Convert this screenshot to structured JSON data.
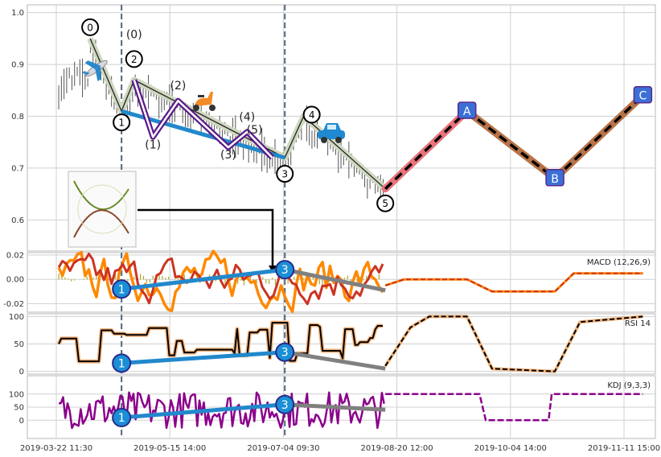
{
  "chart_data": {
    "type": "line",
    "xticks": [
      "2019-03-22 11:30",
      "2019-05-15 14:00",
      "2019-07-04 09:30",
      "2019-08-20 12:00",
      "2019-10-04 14:00",
      "2019-11-11 15:00"
    ],
    "grid": true,
    "colors": {
      "grid": "#d0d0d0",
      "frame": "#b8b8b8",
      "waveFill": "#cfd8c0",
      "purple": "#5a1a8a",
      "blue": "#2288cc",
      "red": "#e8737a",
      "brown": "#b87348",
      "circleBlue": "#1a8fd6",
      "boxBlue": "#3a6fd6",
      "macdDark": "#cc3322",
      "macdLight": "#ff8800",
      "rsiBlack": "#000000",
      "rsiOrange": "#f2b27a",
      "kdj": "#8b008b",
      "gray": "#808080"
    },
    "panels": {
      "price": {
        "yticks": [
          "1.0",
          "0.9",
          "0.8",
          "0.7",
          "0.6"
        ],
        "yticks_values": [
          1.0,
          0.9,
          0.8,
          0.7,
          0.6
        ],
        "ylim": [
          0.54,
          1.015
        ],
        "wave": [
          [
            0.1,
            0.95
          ],
          [
            0.15,
            0.81
          ],
          [
            0.17,
            0.87
          ],
          [
            0.41,
            0.72
          ],
          [
            0.44,
            0.8
          ],
          [
            0.57,
            0.66
          ]
        ],
        "wave_labels": [
          "0",
          "1",
          "2",
          "3",
          "4",
          "5"
        ],
        "subwave": [
          [
            0.17,
            0.87
          ],
          [
            0.2,
            0.76
          ],
          [
            0.24,
            0.83
          ],
          [
            0.32,
            0.74
          ],
          [
            0.35,
            0.77
          ],
          [
            0.39,
            0.72
          ]
        ],
        "subwave_labels": [
          "(0)",
          "(1)",
          "(2)",
          "(3)",
          "(4)",
          "(5)"
        ],
        "blue_line": [
          [
            0.15,
            0.81
          ],
          [
            0.41,
            0.72
          ]
        ],
        "projection": [
          [
            0.57,
            0.66
          ],
          [
            0.7,
            0.81
          ],
          [
            0.84,
            0.68
          ],
          [
            0.98,
            0.84
          ]
        ],
        "projection_labels": [
          "A",
          "B",
          "C"
        ],
        "dashed_x": [
          0.15,
          0.41
        ]
      },
      "macd": {
        "label": "MACD (12,26,9)",
        "yticks": [
          "0.02",
          "0.00",
          "-0.02"
        ],
        "yticks_values": [
          0.02,
          0.0,
          -0.02
        ],
        "ylim": [
          -0.027,
          0.022
        ]
      },
      "rsi": {
        "label": "RSI 14",
        "yticks": [
          "100",
          "50",
          "0"
        ],
        "yticks_values": [
          100,
          50,
          0
        ],
        "ylim": [
          -5,
          105
        ]
      },
      "kdj": {
        "label": "KDJ (9,3,3)",
        "yticks": [
          "100",
          "50",
          "0"
        ],
        "yticks_values": [
          100,
          50,
          0
        ],
        "ylim": [
          -70,
          170
        ]
      }
    },
    "divergence_labels": [
      "1",
      "3"
    ]
  }
}
